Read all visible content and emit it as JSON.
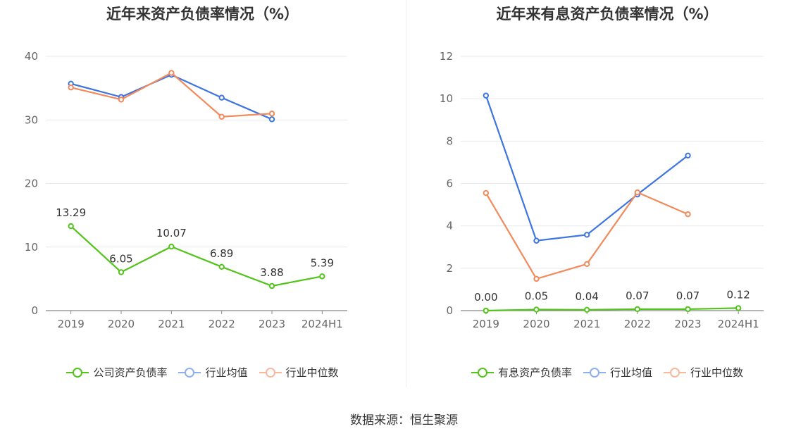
{
  "source_label": "数据来源：恒生聚源",
  "chart_data": [
    {
      "type": "line",
      "title": "近年来资产负债率情况（%）",
      "categories": [
        "2019",
        "2020",
        "2021",
        "2022",
        "2023",
        "2024H1"
      ],
      "ylim": [
        0,
        40
      ],
      "yticks": [
        0,
        10,
        20,
        30,
        40
      ],
      "grid": true,
      "legend_position": "bottom",
      "series": [
        {
          "name": "公司资产负债率",
          "color": "#52c41a",
          "values": [
            13.29,
            6.05,
            10.07,
            6.89,
            3.88,
            5.39
          ],
          "labels": [
            "13.29",
            "6.05",
            "10.07",
            "6.89",
            "3.88",
            "5.39"
          ]
        },
        {
          "name": "行业均值",
          "color": "#3d74e0",
          "values": [
            35.7,
            33.6,
            37.1,
            33.5,
            30.1,
            null
          ]
        },
        {
          "name": "行业中位数",
          "color": "#f28a5c",
          "values": [
            35.1,
            33.2,
            37.4,
            30.5,
            31.0,
            null
          ]
        }
      ]
    },
    {
      "type": "line",
      "title": "近年来有息资产负债率情况（%）",
      "categories": [
        "2019",
        "2020",
        "2021",
        "2022",
        "2023",
        "2024H1"
      ],
      "ylim": [
        0,
        12
      ],
      "yticks": [
        0,
        2,
        4,
        6,
        8,
        10,
        12
      ],
      "grid": true,
      "legend_position": "bottom",
      "series": [
        {
          "name": "有息资产负债率",
          "color": "#52c41a",
          "values": [
            0.0,
            0.05,
            0.04,
            0.07,
            0.07,
            0.12
          ],
          "labels": [
            "0.00",
            "0.05",
            "0.04",
            "0.07",
            "0.07",
            "0.12"
          ]
        },
        {
          "name": "行业均值",
          "color": "#3d74e0",
          "values": [
            10.15,
            3.3,
            3.58,
            5.48,
            7.32,
            null
          ]
        },
        {
          "name": "行业中位数",
          "color": "#f28a5c",
          "values": [
            5.55,
            1.5,
            2.2,
            5.58,
            4.55,
            null
          ]
        }
      ]
    }
  ]
}
